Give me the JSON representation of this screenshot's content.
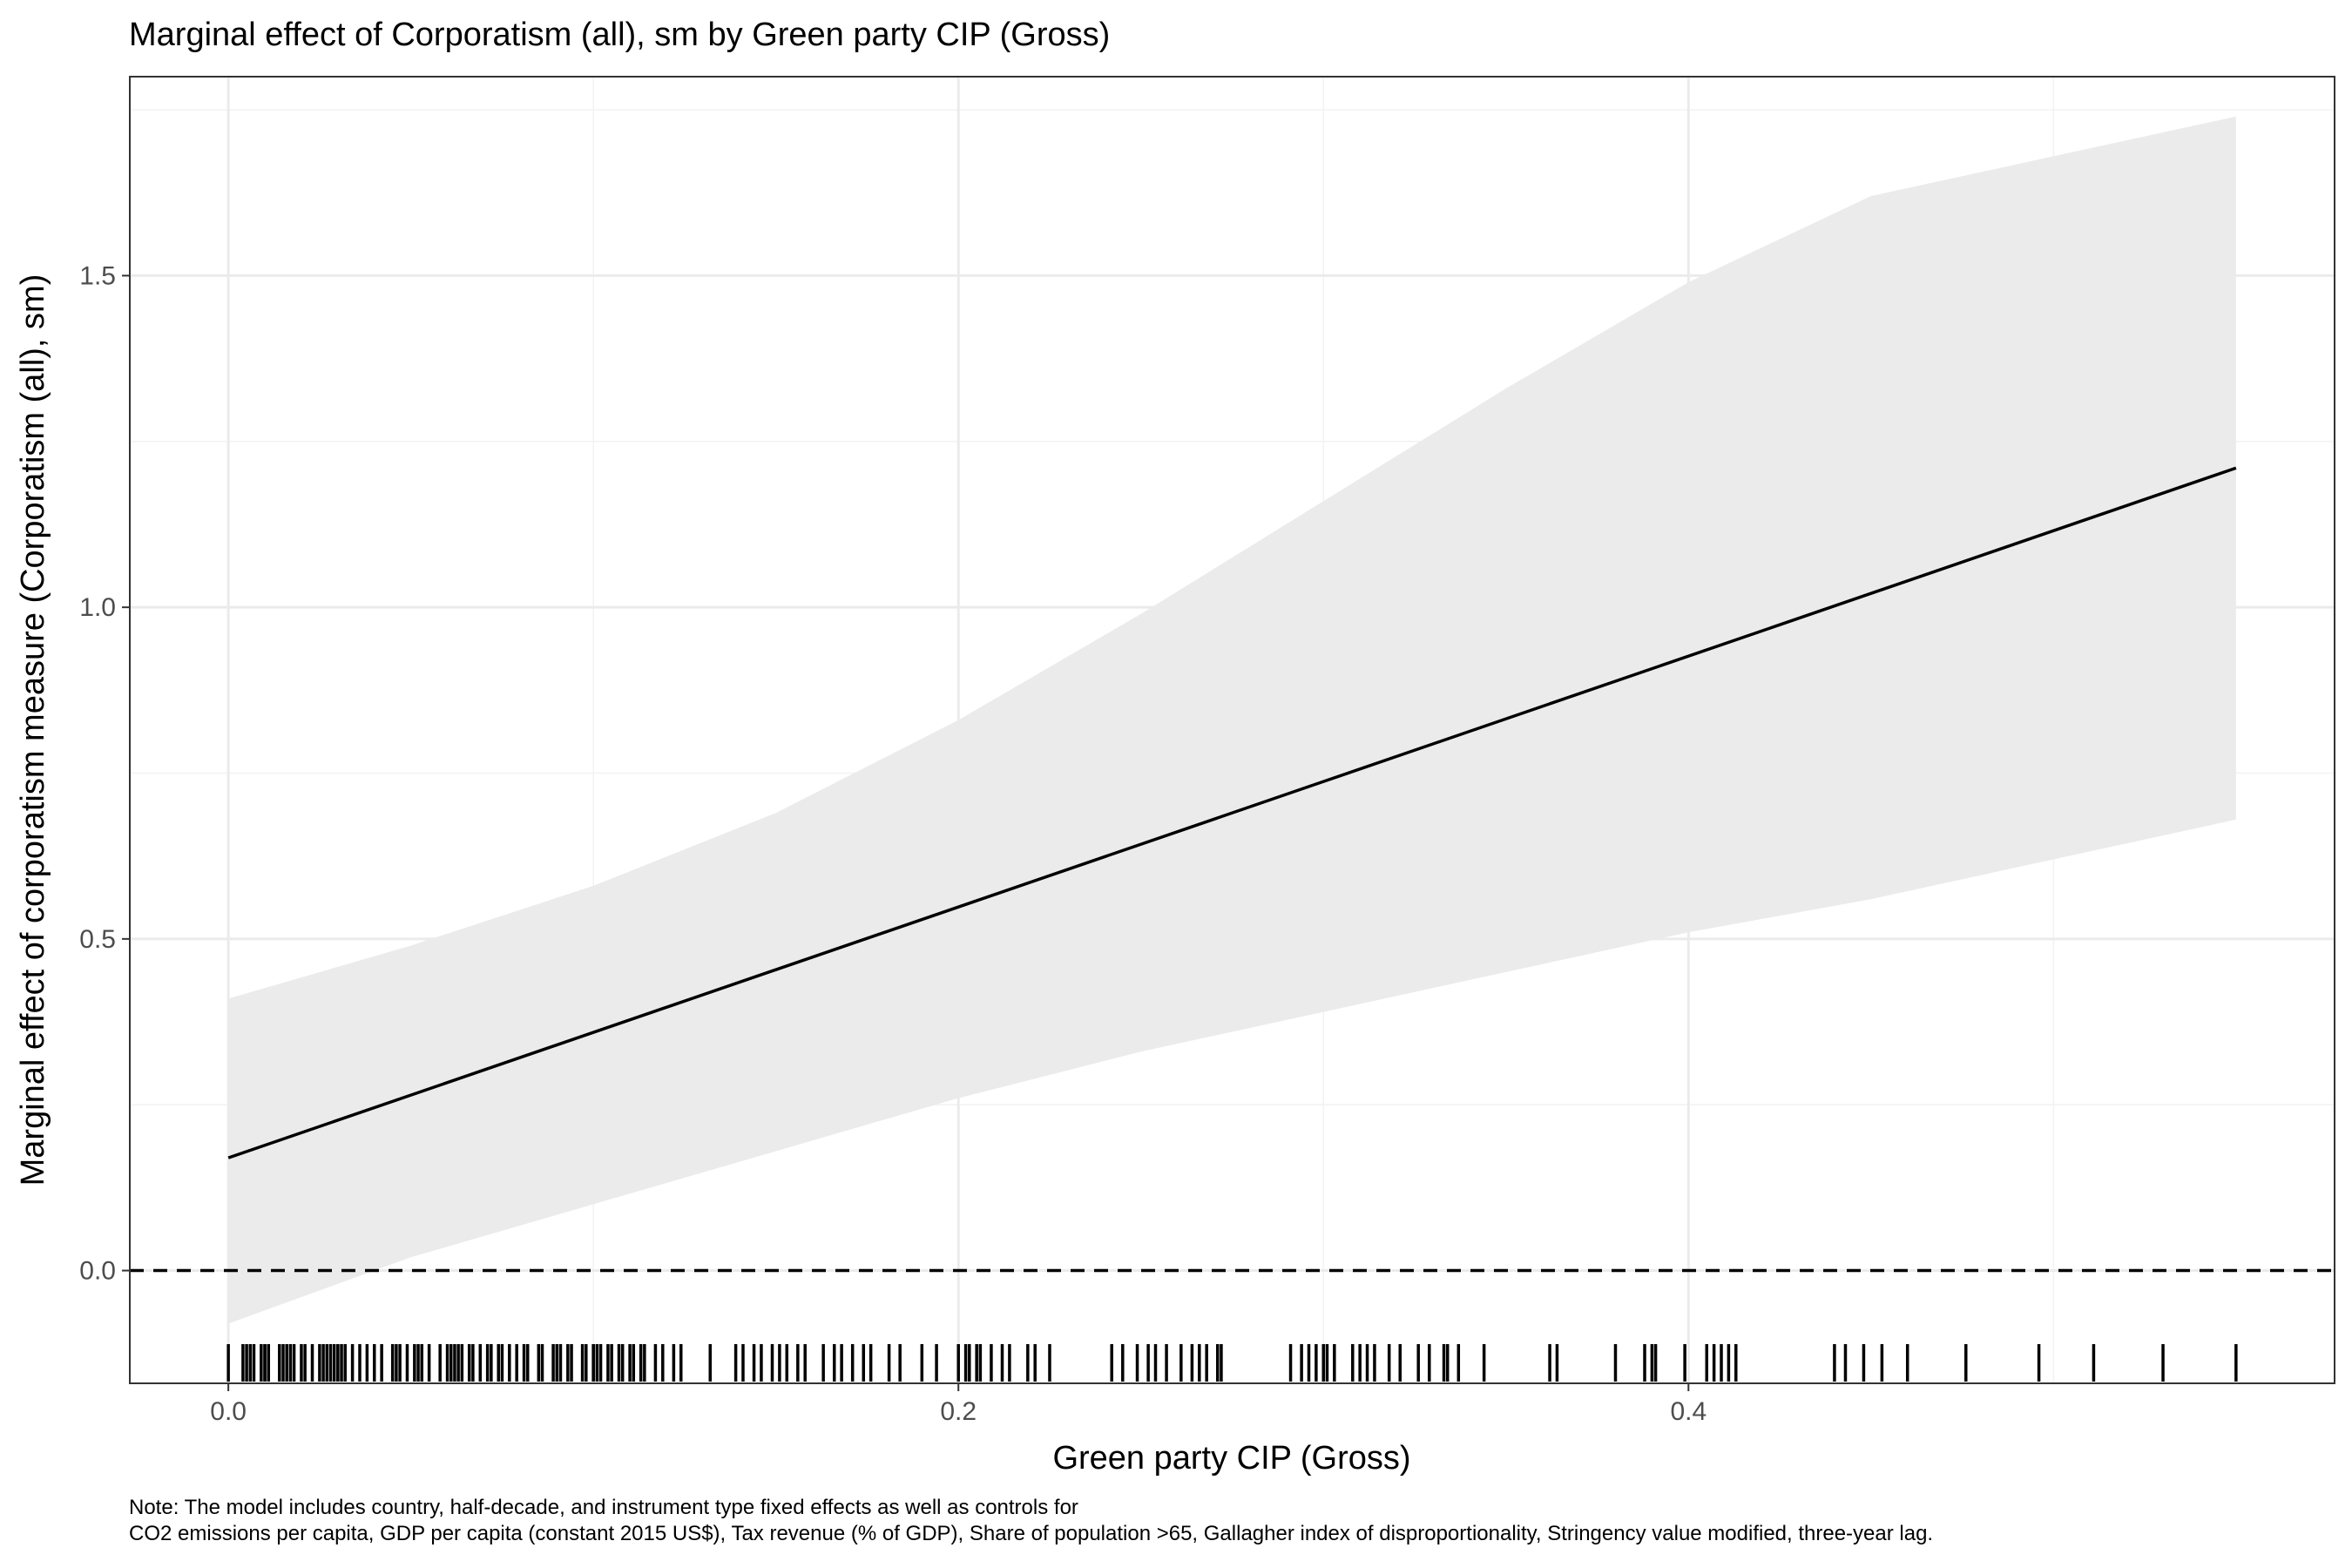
{
  "chart_data": {
    "type": "line",
    "title": "Marginal effect of Corporatism (all), sm by Green party CIP (Gross)",
    "xlabel": "Green party CIP (Gross)",
    "ylabel": "Marginal effect of corporatism measure (Corporatism (all), sm)",
    "xlim": [
      -0.027,
      0.577
    ],
    "ylim": [
      -0.17,
      1.8
    ],
    "x_ticks": [
      0.0,
      0.2,
      0.4
    ],
    "x_tick_labels": [
      "0.0",
      "0.2",
      "0.4"
    ],
    "y_ticks": [
      0.0,
      0.5,
      1.0,
      1.5
    ],
    "y_tick_labels": [
      "0.0",
      "0.5",
      "1.0",
      "1.5"
    ],
    "grid": true,
    "reference_line": {
      "y": 0,
      "style": "dashed"
    },
    "series": [
      {
        "type": "line",
        "x": [
          0.0,
          0.55
        ],
        "y": [
          0.17,
          1.21
        ]
      },
      {
        "type": "ribbon",
        "x": [
          0.0,
          0.05,
          0.1,
          0.15,
          0.2,
          0.25,
          0.3,
          0.35,
          0.4,
          0.45,
          0.5,
          0.55
        ],
        "lower": [
          -0.08,
          0.02,
          0.1,
          0.18,
          0.26,
          0.33,
          0.39,
          0.45,
          0.51,
          0.56,
          0.62,
          0.68
        ],
        "upper": [
          0.41,
          0.49,
          0.58,
          0.69,
          0.83,
          0.99,
          1.16,
          1.33,
          1.49,
          1.62,
          1.68,
          1.74
        ]
      }
    ],
    "rug": [
      0.0,
      0.004,
      0.005,
      0.006,
      0.007,
      0.009,
      0.01,
      0.01,
      0.011,
      0.014,
      0.015,
      0.016,
      0.017,
      0.018,
      0.02,
      0.021,
      0.023,
      0.025,
      0.026,
      0.027,
      0.028,
      0.029,
      0.03,
      0.03,
      0.031,
      0.032,
      0.034,
      0.036,
      0.038,
      0.04,
      0.042,
      0.045,
      0.046,
      0.047,
      0.049,
      0.051,
      0.052,
      0.053,
      0.055,
      0.058,
      0.06,
      0.061,
      0.062,
      0.063,
      0.064,
      0.066,
      0.067,
      0.069,
      0.071,
      0.072,
      0.074,
      0.075,
      0.077,
      0.079,
      0.081,
      0.082,
      0.085,
      0.086,
      0.089,
      0.09,
      0.091,
      0.093,
      0.094,
      0.097,
      0.098,
      0.1,
      0.1,
      0.101,
      0.102,
      0.104,
      0.105,
      0.107,
      0.108,
      0.11,
      0.111,
      0.113,
      0.114,
      0.117,
      0.119,
      0.122,
      0.124,
      0.132,
      0.139,
      0.141,
      0.144,
      0.146,
      0.149,
      0.151,
      0.153,
      0.156,
      0.158,
      0.163,
      0.166,
      0.168,
      0.171,
      0.174,
      0.176,
      0.181,
      0.184,
      0.19,
      0.194,
      0.2,
      0.202,
      0.203,
      0.205,
      0.206,
      0.209,
      0.212,
      0.214,
      0.219,
      0.221,
      0.225,
      0.242,
      0.245,
      0.249,
      0.252,
      0.254,
      0.257,
      0.261,
      0.264,
      0.266,
      0.268,
      0.271,
      0.272,
      0.291,
      0.294,
      0.296,
      0.298,
      0.3,
      0.301,
      0.303,
      0.308,
      0.31,
      0.312,
      0.314,
      0.318,
      0.321,
      0.326,
      0.329,
      0.333,
      0.334,
      0.337,
      0.344,
      0.362,
      0.364,
      0.38,
      0.388,
      0.39,
      0.391,
      0.399,
      0.405,
      0.407,
      0.409,
      0.411,
      0.413,
      0.44,
      0.443,
      0.448,
      0.453,
      0.46,
      0.476,
      0.496,
      0.511,
      0.53,
      0.55
    ]
  },
  "note": {
    "line1": "Note: The model includes country, half-decade, and instrument type fixed effects as well as controls for",
    "line2": "CO2 emissions per capita, GDP per capita (constant 2015 US$), Tax revenue (% of GDP), Share of population >65, Gallagher index of disproportionality, Stringency value modified, three-year lag."
  }
}
